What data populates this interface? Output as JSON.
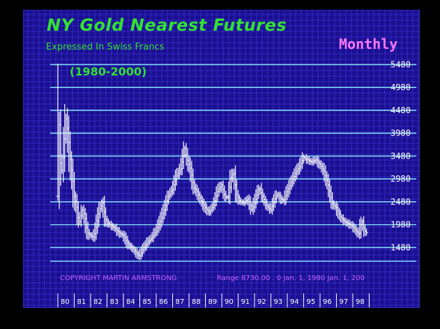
{
  "title": "NY Gold Nearest Futures",
  "subtitle": "Expressed In Swiss Francs",
  "period": "Monthly",
  "years_label": "(1980-2000)",
  "copyright": "COPYRIGHT MARTIN ARMSTRONG",
  "range_text": "Range   8730.00 . 0 Jan.  1,  1980 Jan.  1,  200",
  "colors": {
    "background": "#1a0f8f",
    "grid": "#3a30d0",
    "levels": "#7fd8f8",
    "bars": "#ffffff",
    "title": "#33e033",
    "period": "#ff77ff",
    "footer": "#c060ff"
  },
  "chart_data": {
    "type": "ohlc",
    "frequency": "monthly",
    "ylim": [
      1180,
      5640
    ],
    "y_tick_labels": [
      "5480",
      "4980",
      "4480",
      "3980",
      "3480",
      "2980",
      "2480",
      "1980",
      "1480"
    ],
    "x_tick_labels": [
      "80",
      "81",
      "82",
      "83",
      "84",
      "85",
      "86",
      "87",
      "88",
      "89",
      "90",
      "91",
      "92",
      "93",
      "94",
      "95",
      "96",
      "97",
      "98"
    ],
    "grid": true,
    "anchors": [
      {
        "x": 1980.0,
        "y": 2600
      },
      {
        "x": 1980.08,
        "y": 4200
      },
      {
        "x": 1980.2,
        "y": 3000
      },
      {
        "x": 1980.35,
        "y": 3500
      },
      {
        "x": 1980.5,
        "y": 4300
      },
      {
        "x": 1980.62,
        "y": 4000
      },
      {
        "x": 1980.75,
        "y": 3400
      },
      {
        "x": 1980.9,
        "y": 3000
      },
      {
        "x": 1981.0,
        "y": 2600
      },
      {
        "x": 1981.15,
        "y": 2400
      },
      {
        "x": 1981.3,
        "y": 2000
      },
      {
        "x": 1981.5,
        "y": 2300
      },
      {
        "x": 1981.65,
        "y": 2150
      },
      {
        "x": 1981.8,
        "y": 1800
      },
      {
        "x": 1982.0,
        "y": 1750
      },
      {
        "x": 1982.2,
        "y": 1700
      },
      {
        "x": 1982.35,
        "y": 1950
      },
      {
        "x": 1982.55,
        "y": 2300
      },
      {
        "x": 1982.75,
        "y": 2450
      },
      {
        "x": 1982.9,
        "y": 2100
      },
      {
        "x": 1983.1,
        "y": 2000
      },
      {
        "x": 1983.3,
        "y": 1950
      },
      {
        "x": 1983.5,
        "y": 1900
      },
      {
        "x": 1983.75,
        "y": 1800
      },
      {
        "x": 1984.0,
        "y": 1750
      },
      {
        "x": 1984.3,
        "y": 1550
      },
      {
        "x": 1984.6,
        "y": 1450
      },
      {
        "x": 1984.85,
        "y": 1330
      },
      {
        "x": 1985.0,
        "y": 1300
      },
      {
        "x": 1985.2,
        "y": 1450
      },
      {
        "x": 1985.5,
        "y": 1600
      },
      {
        "x": 1985.75,
        "y": 1700
      },
      {
        "x": 1986.0,
        "y": 1850
      },
      {
        "x": 1986.25,
        "y": 2050
      },
      {
        "x": 1986.5,
        "y": 2300
      },
      {
        "x": 1986.75,
        "y": 2600
      },
      {
        "x": 1987.0,
        "y": 2750
      },
      {
        "x": 1987.25,
        "y": 3050
      },
      {
        "x": 1987.5,
        "y": 3200
      },
      {
        "x": 1987.75,
        "y": 3650
      },
      {
        "x": 1987.9,
        "y": 3400
      },
      {
        "x": 1988.1,
        "y": 3200
      },
      {
        "x": 1988.3,
        "y": 2800
      },
      {
        "x": 1988.5,
        "y": 2700
      },
      {
        "x": 1988.75,
        "y": 2500
      },
      {
        "x": 1989.0,
        "y": 2350
      },
      {
        "x": 1989.25,
        "y": 2250
      },
      {
        "x": 1989.5,
        "y": 2400
      },
      {
        "x": 1989.75,
        "y": 2700
      },
      {
        "x": 1990.0,
        "y": 2850
      },
      {
        "x": 1990.2,
        "y": 2600
      },
      {
        "x": 1990.4,
        "y": 2550
      },
      {
        "x": 1990.6,
        "y": 3050
      },
      {
        "x": 1990.75,
        "y": 3100
      },
      {
        "x": 1990.9,
        "y": 2650
      },
      {
        "x": 1991.1,
        "y": 2500
      },
      {
        "x": 1991.35,
        "y": 2450
      },
      {
        "x": 1991.6,
        "y": 2550
      },
      {
        "x": 1991.85,
        "y": 2300
      },
      {
        "x": 1992.1,
        "y": 2550
      },
      {
        "x": 1992.3,
        "y": 2800
      },
      {
        "x": 1992.5,
        "y": 2600
      },
      {
        "x": 1992.75,
        "y": 2400
      },
      {
        "x": 1993.0,
        "y": 2300
      },
      {
        "x": 1993.2,
        "y": 2500
      },
      {
        "x": 1993.4,
        "y": 2650
      },
      {
        "x": 1993.6,
        "y": 2550
      },
      {
        "x": 1993.8,
        "y": 2500
      },
      {
        "x": 1994.0,
        "y": 2700
      },
      {
        "x": 1994.25,
        "y": 2900
      },
      {
        "x": 1994.5,
        "y": 3100
      },
      {
        "x": 1994.75,
        "y": 3250
      },
      {
        "x": 1995.0,
        "y": 3450
      },
      {
        "x": 1995.25,
        "y": 3400
      },
      {
        "x": 1995.5,
        "y": 3350
      },
      {
        "x": 1995.75,
        "y": 3400
      },
      {
        "x": 1996.0,
        "y": 3300
      },
      {
        "x": 1996.25,
        "y": 3150
      },
      {
        "x": 1996.5,
        "y": 2850
      },
      {
        "x": 1996.75,
        "y": 2450
      },
      {
        "x": 1997.0,
        "y": 2350
      },
      {
        "x": 1997.25,
        "y": 2150
      },
      {
        "x": 1997.5,
        "y": 2050
      },
      {
        "x": 1997.75,
        "y": 2000
      },
      {
        "x": 1998.0,
        "y": 1950
      },
      {
        "x": 1998.2,
        "y": 1850
      },
      {
        "x": 1998.4,
        "y": 1750
      },
      {
        "x": 1998.55,
        "y": 2100
      },
      {
        "x": 1998.7,
        "y": 1850
      },
      {
        "x": 1998.85,
        "y": 1800
      }
    ]
  }
}
